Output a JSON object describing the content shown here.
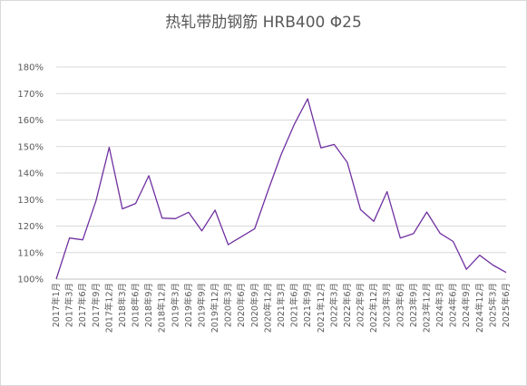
{
  "chart_data": {
    "type": "line",
    "title": "热轧带肋钢筋 HRB400 Φ25",
    "xlabel": "",
    "ylabel": "",
    "ylim": [
      1.0,
      1.8
    ],
    "yticks": [
      "100%",
      "110%",
      "120%",
      "130%",
      "140%",
      "150%",
      "160%",
      "170%",
      "180%"
    ],
    "grid": true,
    "legend": "none",
    "line_color": "#7030a0",
    "categories": [
      "2017年1月",
      "2017年3月",
      "2017年6月",
      "2017年9月",
      "2017年12月",
      "2018年3月",
      "2018年6月",
      "2018年9月",
      "2018年12月",
      "2019年3月",
      "2019年6月",
      "2019年9月",
      "2019年12月",
      "2020年3月",
      "2020年6月",
      "2020年9月",
      "2020年12月",
      "2021年3月",
      "2021年6月",
      "2021年9月",
      "2021年12月",
      "2022年3月",
      "2022年6月",
      "2022年9月",
      "2022年12月",
      "2023年3月",
      "2023年6月",
      "2023年9月",
      "2023年12月",
      "2024年3月",
      "2024年6月",
      "2024年9月",
      "2024年12月",
      "2025年3月",
      "2025年6月"
    ],
    "series": [
      {
        "values": [
          1.0,
          1.155,
          1.148,
          1.295,
          1.497,
          1.265,
          1.285,
          1.39,
          1.23,
          1.228,
          1.252,
          1.182,
          1.26,
          1.13,
          1.16,
          1.19,
          1.333,
          1.47,
          1.585,
          1.68,
          1.495,
          1.508,
          1.44,
          1.262,
          1.218,
          1.33,
          1.155,
          1.172,
          1.253,
          1.173,
          1.142,
          1.037,
          1.09,
          1.053,
          1.025
        ]
      }
    ]
  }
}
